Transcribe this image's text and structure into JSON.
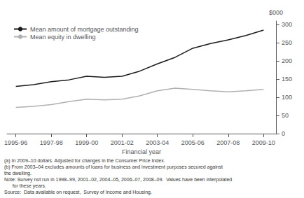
{
  "chart_data": {
    "type": "line",
    "x": [
      1995.5,
      1996.5,
      1997.5,
      1998.5,
      1999.5,
      2000.5,
      2001.5,
      2002.5,
      2003.5,
      2004.5,
      2005.5,
      2006.5,
      2007.5,
      2008.5,
      2009.5
    ],
    "series": [
      {
        "name": "Mean amount of mortgage outstanding",
        "color": "#1a1a1a",
        "values": [
          130,
          135,
          143,
          148,
          158,
          155,
          158,
          172,
          192,
          210,
          235,
          248,
          258,
          270,
          285
        ]
      },
      {
        "name": "Mean equity in dwelling",
        "color": "#b0b0b0",
        "values": [
          72,
          75,
          80,
          88,
          95,
          93,
          95,
          104,
          118,
          125,
          122,
          118,
          115,
          118,
          122
        ]
      }
    ],
    "xlim": [
      1995.0,
      2010.2
    ],
    "xticks": [
      {
        "value": 1995.5,
        "label": "1995-96"
      },
      {
        "value": 1997.5,
        "label": "1997-98"
      },
      {
        "value": 1999.5,
        "label": "1999-00"
      },
      {
        "value": 2001.5,
        "label": "2001-02"
      },
      {
        "value": 2003.5,
        "label": "2003-04"
      },
      {
        "value": 2005.5,
        "label": "2005-06"
      },
      {
        "value": 2007.5,
        "label": "2007-08"
      },
      {
        "value": 2009.5,
        "label": "2009-10"
      }
    ],
    "ylim": [
      0,
      310
    ],
    "yticks": [
      0,
      50,
      100,
      150,
      200,
      250,
      300
    ],
    "xlabel": "Financial year",
    "ylabel": "$000",
    "legend": "upper left",
    "grid": false,
    "annotations": [
      "(a) In 2009–10 dollars. Adjusted for changes in the Consumer Price Index.",
      "(b) From 2003–04 excludes amounts of loans for business and investment purposes secured against\nthe dwelling.",
      "Note: Survey not run in 1998–99, 2001–02, 2004–05, 2006–07, 2008–09.  Values have been interpolated\n      for these years.",
      "Source:  Data available on request,  Survey of Income and Housing."
    ]
  }
}
